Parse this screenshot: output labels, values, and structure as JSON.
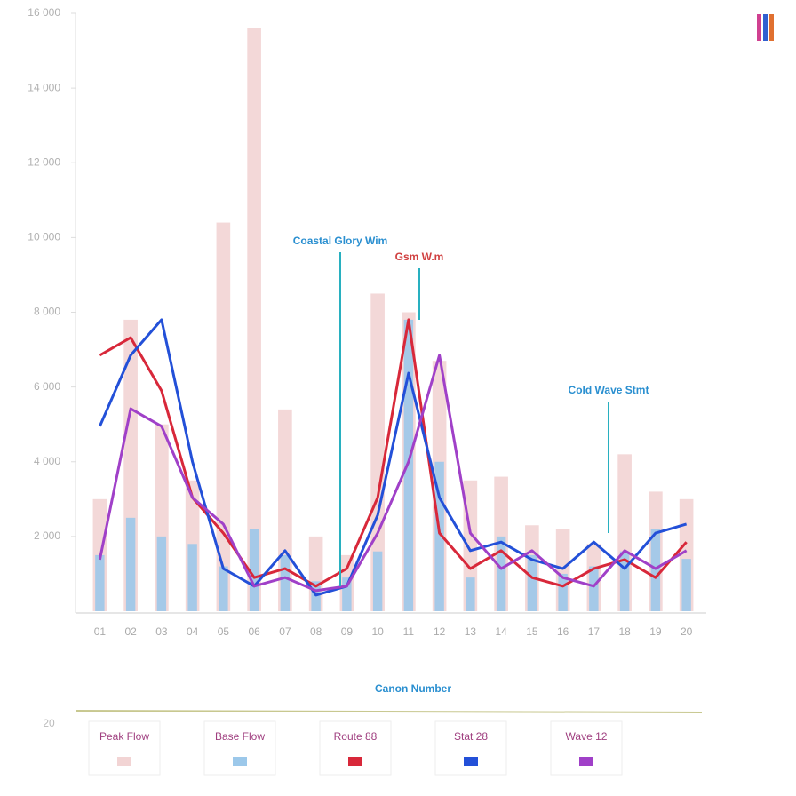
{
  "chart_data": {
    "type": "bar",
    "x_label": "Canon Number",
    "note": "20",
    "categories": [
      "01",
      "02",
      "03",
      "04",
      "05",
      "06",
      "07",
      "08",
      "09",
      "10",
      "11",
      "12",
      "13",
      "14",
      "15",
      "16",
      "17",
      "18",
      "19",
      "20"
    ],
    "ylim": [
      0,
      16000
    ],
    "yticks": [
      {
        "value": 2000,
        "label": "2 000"
      },
      {
        "value": 4000,
        "label": "4 000"
      },
      {
        "value": 6000,
        "label": "6 000"
      },
      {
        "value": 8000,
        "label": "8 000"
      },
      {
        "value": 10000,
        "label": "10 000"
      },
      {
        "value": 12000,
        "label": "12 000"
      },
      {
        "value": 14000,
        "label": "14 000"
      },
      {
        "value": 16000,
        "label": "16 000"
      }
    ],
    "series": [
      {
        "name": "Peak Flow",
        "kind": "bar",
        "color": "#f2d4d4",
        "values": [
          3000,
          7800,
          5000,
          3500,
          10400,
          15600,
          5400,
          2000,
          1500,
          8500,
          8000,
          6700,
          3500,
          3600,
          2300,
          2200,
          1800,
          4200,
          3200,
          3000
        ]
      },
      {
        "name": "Base Flow",
        "kind": "bar",
        "color": "#9cc8ea",
        "values": [
          1500,
          2500,
          2000,
          1800,
          1200,
          2200,
          1500,
          800,
          900,
          1600,
          7800,
          4000,
          900,
          2000,
          1500,
          1000,
          1200,
          1600,
          2200,
          1400
        ]
      },
      {
        "name": "Route 88",
        "kind": "line",
        "color": "#d8283a",
        "values": [
          6850,
          7320,
          5900,
          3040,
          2090,
          900,
          1140,
          670,
          1140,
          3040,
          7800,
          2090,
          1140,
          1620,
          900,
          670,
          1140,
          1380,
          900,
          1850
        ]
      },
      {
        "name": "Stat 28",
        "kind": "line",
        "color": "#2350d8",
        "values": [
          4950,
          6850,
          7800,
          4000,
          1140,
          670,
          1620,
          430,
          670,
          2570,
          6370,
          3040,
          1620,
          1850,
          1380,
          1140,
          1850,
          1140,
          2090,
          2330
        ]
      },
      {
        "name": "Wave 12",
        "kind": "line",
        "color": "#a040c8",
        "values": [
          1380,
          5420,
          4950,
          3040,
          2330,
          670,
          900,
          550,
          670,
          2090,
          4000,
          6850,
          2090,
          1140,
          1620,
          900,
          670,
          1620,
          1140,
          1620
        ]
      }
    ],
    "annotations": [
      "Coastal Glory Wim",
      "Gsm W.m",
      "Cold Wave Stmt"
    ]
  }
}
